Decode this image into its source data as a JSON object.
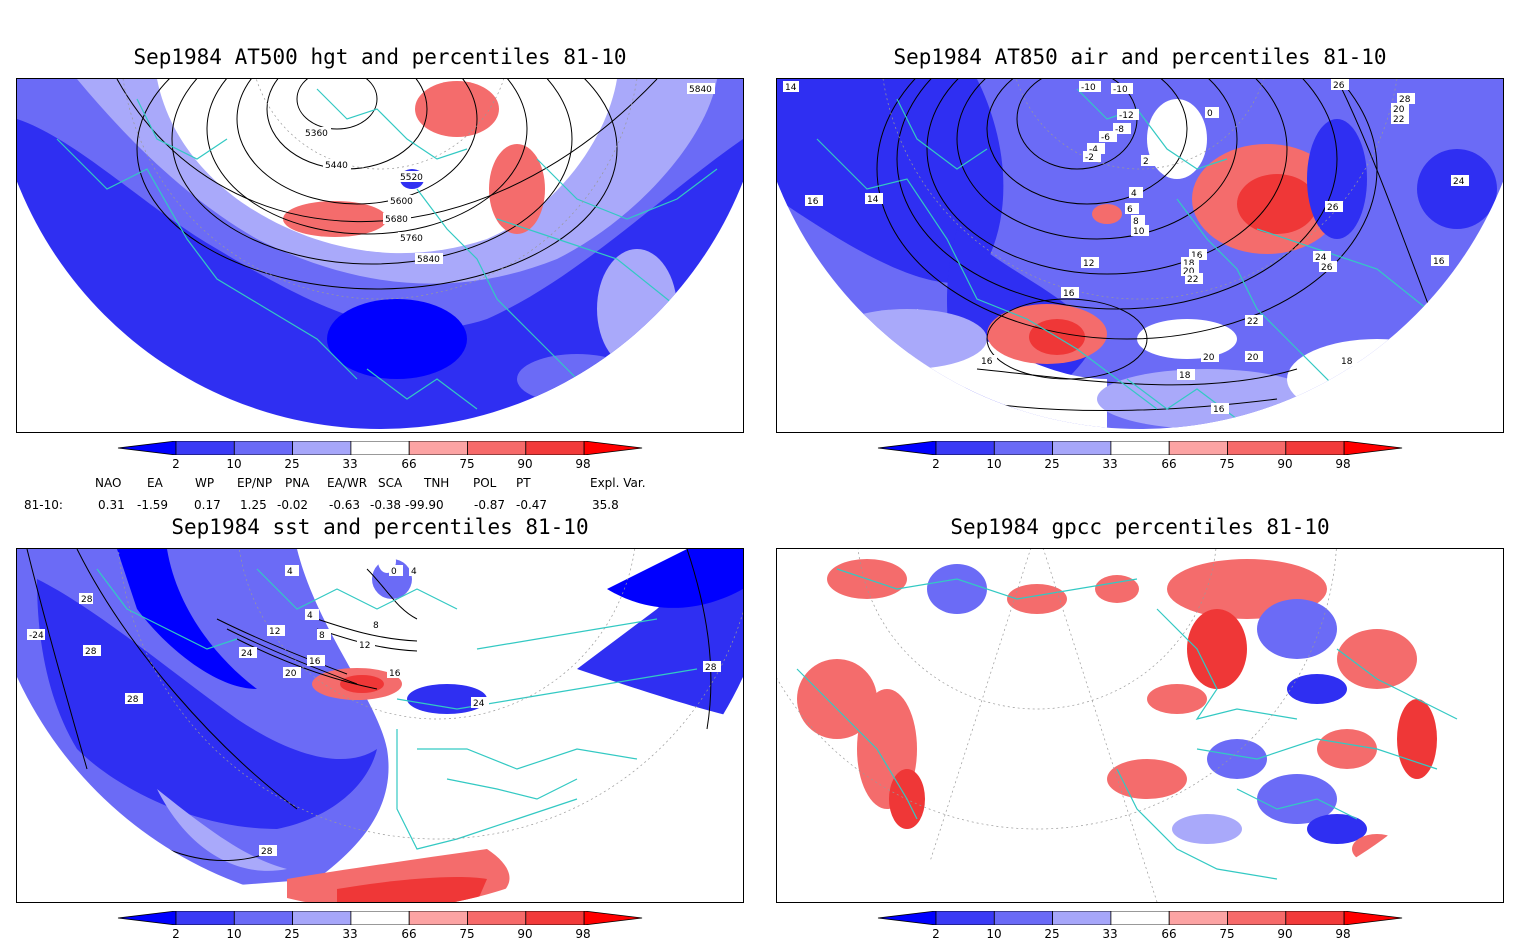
{
  "panels": [
    {
      "id": "hgt500",
      "title": "Sep1984 AT500 hgt and percentiles 81-10",
      "contour_labels": [
        "5840",
        "5360",
        "5440",
        "5520",
        "5600",
        "5680",
        "5760",
        "5840"
      ]
    },
    {
      "id": "air850",
      "title": "Sep1984 AT850 air and percentiles 81-10",
      "contour_labels": [
        "14",
        "-10",
        "-10",
        "-12",
        "-8",
        "-6",
        "-4",
        "-2",
        "0",
        "2",
        "4",
        "6",
        "8",
        "10",
        "12",
        "14",
        "16",
        "16",
        "16",
        "18",
        "18",
        "20",
        "20",
        "20",
        "22",
        "22",
        "24",
        "26",
        "26",
        "26",
        "28",
        "20",
        "22",
        "24",
        "16",
        "16",
        "18",
        "16"
      ]
    },
    {
      "id": "sst",
      "title": "Sep1984 sst and percentiles 81-10",
      "contour_labels": [
        "28",
        "-24",
        "28",
        "28",
        "4",
        "4",
        "0",
        "4",
        "8",
        "8",
        "12",
        "12",
        "16",
        "16",
        "20",
        "24",
        "24",
        "28",
        "28"
      ]
    },
    {
      "id": "gpcc",
      "title": "Sep1984 gpcc percentiles 81-10",
      "contour_labels": []
    }
  ],
  "colorbar": {
    "ticks": [
      "2",
      "10",
      "25",
      "33",
      "66",
      "75",
      "90",
      "98"
    ],
    "colors": [
      "#0000ff",
      "#3a3af5",
      "#6a6af7",
      "#a6a6fa",
      "#ffffff",
      "#fca3a3",
      "#f76a6a",
      "#f23a3a",
      "#ff0000"
    ]
  },
  "teleconnections": {
    "headers": [
      "NAO",
      "EA",
      "WP",
      "EP/NP",
      "PNA",
      "EA/WR",
      "SCA",
      "TNH",
      "POL",
      "PT",
      "Expl. Var."
    ],
    "row_label": "81-10:",
    "values": [
      "0.31",
      "-1.59",
      "0.17",
      "1.25",
      "-0.02",
      "-0.63",
      "-0.38",
      "-99.90",
      "-0.87",
      "-0.47",
      "35.8"
    ]
  }
}
